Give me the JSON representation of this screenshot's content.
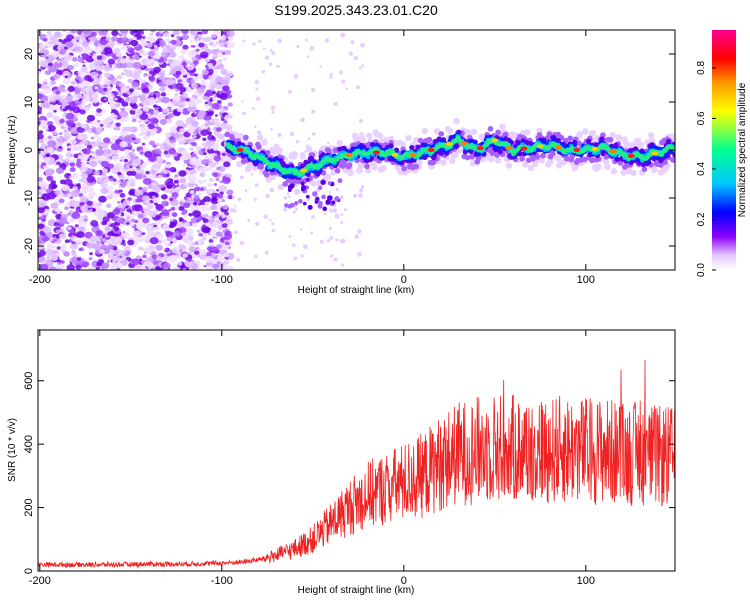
{
  "title": "S199.2025.343.23.01.C20",
  "chart_data": [
    {
      "type": "heatmap",
      "xlabel": "Height of straight line (km)",
      "ylabel": "Frequency (Hz)",
      "xlim": [
        -201,
        149
      ],
      "ylim": [
        -25,
        25
      ],
      "xticks": [
        -200,
        -100,
        0,
        100
      ],
      "yticks": [
        -20,
        -10,
        0,
        10,
        20
      ],
      "colorbar": {
        "label": "Normalized spectral amplitude",
        "range": [
          0,
          0.95
        ],
        "ticks": [
          0.0,
          0.2,
          0.4,
          0.6,
          0.8
        ],
        "tick_labels": [
          "0.0",
          "0.2",
          "0.4",
          "0.6",
          "0.8"
        ],
        "colors": [
          "#ffffff",
          "#e0b8ff",
          "#8a00ff",
          "#0000ff",
          "#00c8ff",
          "#00ff90",
          "#ffff00",
          "#ff8800",
          "#ff0000",
          "#ff00aa"
        ]
      },
      "signal_track": [
        {
          "x": -95,
          "f": 0.5
        },
        {
          "x": -85,
          "f": -0.5
        },
        {
          "x": -80,
          "f": -1.5
        },
        {
          "x": -70,
          "f": -3.5
        },
        {
          "x": -60,
          "f": -5
        },
        {
          "x": -50,
          "f": -3.5
        },
        {
          "x": -40,
          "f": -2
        },
        {
          "x": -30,
          "f": -1
        },
        {
          "x": -20,
          "f": -0.5
        },
        {
          "x": -10,
          "f": -0.5
        },
        {
          "x": 0,
          "f": -1.5
        },
        {
          "x": 10,
          "f": -0.5
        },
        {
          "x": 20,
          "f": 0.5
        },
        {
          "x": 30,
          "f": 2
        },
        {
          "x": 40,
          "f": 0
        },
        {
          "x": 50,
          "f": 2
        },
        {
          "x": 60,
          "f": 0
        },
        {
          "x": 70,
          "f": 0.5
        },
        {
          "x": 80,
          "f": 1
        },
        {
          "x": 90,
          "f": 0
        },
        {
          "x": 100,
          "f": 0
        },
        {
          "x": 110,
          "f": 0.5
        },
        {
          "x": 120,
          "f": -1
        },
        {
          "x": 130,
          "f": -1.5
        },
        {
          "x": 140,
          "f": -0.5
        },
        {
          "x": 149,
          "f": 0.5
        }
      ],
      "noise_region": {
        "x": [
          -201,
          -95
        ],
        "description": "broadband noise"
      }
    },
    {
      "type": "line",
      "xlabel": "Height of straight line (km)",
      "ylabel": "SNR (10 * v/v)",
      "xlim": [
        -201,
        149
      ],
      "ylim": [
        0,
        760
      ],
      "xticks": [
        -200,
        -100,
        0,
        100
      ],
      "yticks": [
        0,
        200,
        400,
        600
      ],
      "color": "#ee2222",
      "series": [
        {
          "name": "SNR",
          "x": [
            -201,
            -180,
            -160,
            -140,
            -120,
            -100,
            -90,
            -80,
            -70,
            -60,
            -50,
            -40,
            -30,
            -20,
            -10,
            0,
            10,
            20,
            30,
            40,
            50,
            60,
            70,
            80,
            90,
            100,
            110,
            120,
            130,
            140,
            149
          ],
          "values": [
            20,
            20,
            20,
            22,
            22,
            25,
            28,
            35,
            50,
            70,
            100,
            150,
            200,
            240,
            260,
            280,
            300,
            340,
            370,
            380,
            390,
            385,
            380,
            380,
            385,
            380,
            380,
            370,
            370,
            360,
            360
          ]
        }
      ]
    }
  ]
}
